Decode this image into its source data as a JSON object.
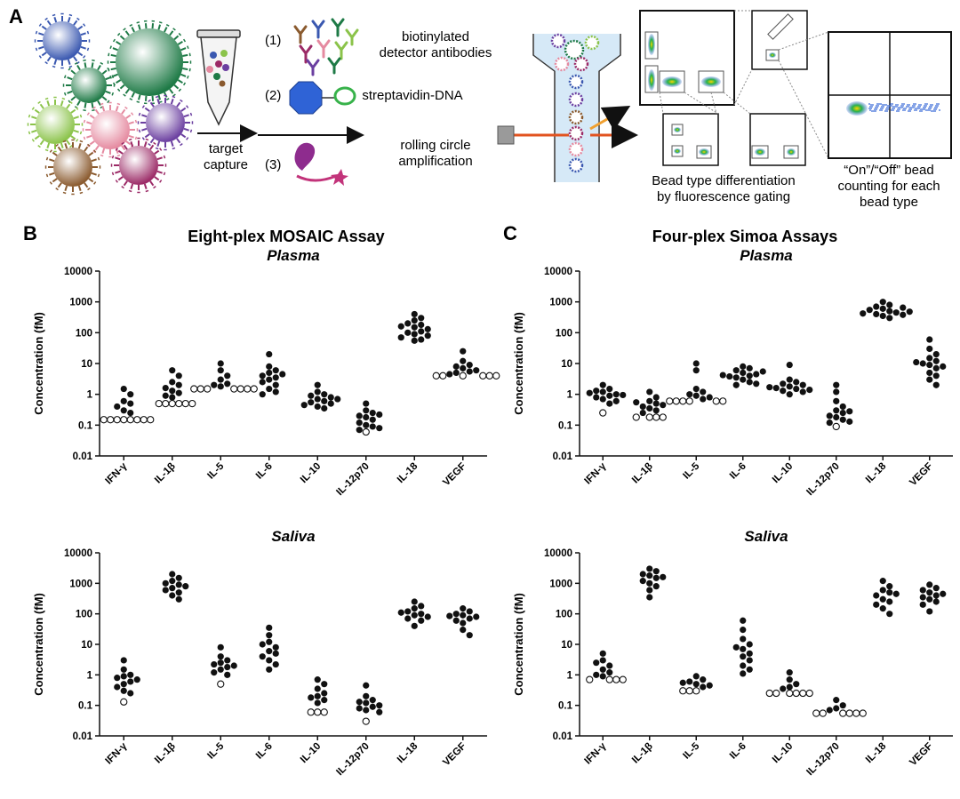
{
  "panels": {
    "A": "A",
    "B": "B",
    "C": "C"
  },
  "schematic": {
    "step1_num": "(1)",
    "step1_label_l1": "biotinylated",
    "step1_label_l2": "detector antibodies",
    "step2_num": "(2)",
    "step2_label": "streptavidin-DNA",
    "step3_num": "(3)",
    "step3_label_l1": "rolling circle",
    "step3_label_l2": "amplification",
    "capture_l1": "target",
    "capture_l2": "capture",
    "gating_l1": "Bead type differentiation",
    "gating_l2": "by fluorescence gating",
    "count_l1": "“On”/“Off” bead",
    "count_l2": "counting for each",
    "count_l3": "bead type"
  },
  "colors": {
    "bead_blue": "#3a58b0",
    "bead_green": "#1e7a46",
    "bead_lightgreen": "#8bc34a",
    "bead_pink": "#e58aa0",
    "bead_purple": "#6b3fa0",
    "bead_brown": "#8a5a2e",
    "bead_magenta": "#9b2a66",
    "laser": "#e2531f",
    "scatter": "#f0a030"
  },
  "chart_data": [
    {
      "type": "scatter",
      "title": "Eight-plex MOSAIC Assay",
      "subtitle": "Plasma",
      "ylabel": "Concentration (fM)",
      "yscale": "log",
      "ylim": [
        0.01,
        10000
      ],
      "yticks": [
        "0.01",
        "0.1",
        "1",
        "10",
        "100",
        "1000",
        "10000"
      ],
      "categories": [
        "IFN-γ",
        "IL-1β",
        "IL-5",
        "IL-6",
        "IL-10",
        "IL-12p70",
        "IL-18",
        "VEGF"
      ],
      "points": [
        {
          "filled": [
            1.5,
            1.0,
            0.6,
            0.5,
            0.4,
            0.3,
            0.25
          ],
          "open": [
            0.15,
            0.15,
            0.15,
            0.15,
            0.15,
            0.15,
            0.15,
            0.15
          ]
        },
        {
          "filled": [
            6,
            4,
            2.5,
            2,
            1.6,
            1.3,
            1.1,
            0.9,
            0.8
          ],
          "open": [
            0.5,
            0.5,
            0.5,
            0.5,
            0.5,
            0.5
          ]
        },
        {
          "filled": [
            10,
            6,
            4,
            3,
            2.2,
            2,
            1.8
          ],
          "open": [
            1.5,
            1.5,
            1.5,
            1.5,
            1.5,
            1.5,
            1.5
          ]
        },
        {
          "filled": [
            20,
            8,
            6,
            5,
            4,
            3.5,
            3,
            2.5,
            2,
            1.5,
            1.2,
            1.0,
            4.5
          ]
        },
        {
          "filled": [
            2,
            1.2,
            1.0,
            0.9,
            0.8,
            0.7,
            0.6,
            0.55,
            0.5,
            0.45,
            0.4,
            0.35,
            0.7
          ]
        },
        {
          "filled": [
            0.5,
            0.3,
            0.25,
            0.2,
            0.18,
            0.15,
            0.12,
            0.1,
            0.09,
            0.08,
            0.07,
            0.22
          ],
          "open": [
            0.06
          ]
        },
        {
          "filled": [
            400,
            300,
            250,
            200,
            180,
            150,
            130,
            110,
            100,
            90,
            80,
            70,
            60,
            55,
            160
          ]
        },
        {
          "filled": [
            25,
            12,
            9,
            8,
            7,
            6,
            5.5,
            5,
            4.5
          ],
          "open": [
            4,
            4,
            4,
            4,
            4,
            4
          ]
        }
      ]
    },
    {
      "type": "scatter",
      "title": "Four-plex Simoa Assays",
      "subtitle": "Plasma",
      "ylabel": "Concentration (fM)",
      "yscale": "log",
      "ylim": [
        0.01,
        10000
      ],
      "yticks": [
        "0.01",
        "0.1",
        "1",
        "10",
        "100",
        "1000",
        "10000"
      ],
      "categories": [
        "IFN-γ",
        "IL-1β",
        "IL-5",
        "IL-6",
        "IL-10",
        "IL-12p70",
        "IL-18",
        "VEGF"
      ],
      "points": [
        {
          "filled": [
            2,
            1.5,
            1.3,
            1.2,
            1.0,
            0.9,
            0.8,
            0.7,
            0.6,
            0.5,
            1.1,
            0.95
          ],
          "open": [
            0.25
          ]
        },
        {
          "filled": [
            1.2,
            0.8,
            0.6,
            0.5,
            0.4,
            0.35,
            0.3,
            0.25,
            0.45,
            0.55
          ],
          "open": [
            0.18,
            0.18,
            0.18,
            0.18
          ]
        },
        {
          "filled": [
            10,
            6,
            1.5,
            1.2,
            1.0,
            0.9,
            0.8,
            0.7
          ],
          "open": [
            0.6,
            0.6,
            0.6,
            0.6,
            0.6,
            0.6
          ]
        },
        {
          "filled": [
            8,
            7,
            6,
            5,
            4.5,
            4,
            3.5,
            3,
            2.5,
            2.2,
            2,
            3.8,
            5.5,
            4.2
          ]
        },
        {
          "filled": [
            9,
            3,
            2.5,
            2.2,
            2,
            1.8,
            1.6,
            1.5,
            1.4,
            1.3,
            1.2,
            1.0,
            1.7
          ]
        },
        {
          "filled": [
            2,
            1.2,
            0.6,
            0.4,
            0.3,
            0.25,
            0.2,
            0.18,
            0.15,
            0.13,
            0.12,
            0.28
          ],
          "open": [
            0.09
          ]
        },
        {
          "filled": [
            1000,
            800,
            700,
            600,
            500,
            450,
            400,
            350,
            300,
            550,
            650,
            420,
            480,
            380
          ]
        },
        {
          "filled": [
            60,
            30,
            20,
            15,
            12,
            10,
            9,
            8,
            7,
            5,
            4,
            3,
            2,
            11
          ]
        }
      ]
    },
    {
      "type": "scatter",
      "subtitle": "Saliva",
      "ylabel": "Concentration (fM)",
      "yscale": "log",
      "ylim": [
        0.01,
        10000
      ],
      "yticks": [
        "0.01",
        "0.1",
        "1",
        "10",
        "100",
        "1000",
        "10000"
      ],
      "categories": [
        "IFN-γ",
        "IL-1β",
        "IL-5",
        "IL-6",
        "IL-10",
        "IL-12p70",
        "IL-18",
        "VEGF"
      ],
      "points": [
        {
          "filled": [
            3,
            1.5,
            1.0,
            0.9,
            0.8,
            0.7,
            0.6,
            0.5,
            0.4,
            0.3,
            0.25
          ],
          "open": [
            0.13
          ]
        },
        {
          "filled": [
            2000,
            1500,
            1200,
            1000,
            900,
            800,
            700,
            600,
            500,
            400,
            300
          ]
        },
        {
          "filled": [
            8,
            4,
            3,
            2.5,
            2.2,
            2,
            1.8,
            1.5,
            1.2,
            1.0
          ],
          "open": [
            0.5
          ]
        },
        {
          "filled": [
            35,
            20,
            12,
            8,
            6,
            5,
            4,
            3,
            2.2,
            1.5,
            10
          ]
        },
        {
          "filled": [
            0.7,
            0.5,
            0.35,
            0.25,
            0.2,
            0.18,
            0.15,
            0.12
          ],
          "open": [
            0.06,
            0.06,
            0.06
          ]
        },
        {
          "filled": [
            0.45,
            0.2,
            0.15,
            0.13,
            0.12,
            0.1,
            0.09,
            0.08,
            0.07,
            0.06
          ],
          "open": [
            0.03
          ]
        },
        {
          "filled": [
            250,
            180,
            150,
            120,
            100,
            90,
            80,
            70,
            60,
            40,
            110
          ]
        },
        {
          "filled": [
            150,
            120,
            100,
            90,
            80,
            70,
            60,
            50,
            30,
            20,
            85
          ]
        }
      ]
    },
    {
      "type": "scatter",
      "subtitle": "Saliva",
      "ylabel": "Concentration (fM)",
      "yscale": "log",
      "ylim": [
        0.01,
        10000
      ],
      "yticks": [
        "0.01",
        "0.1",
        "1",
        "10",
        "100",
        "1000",
        "10000"
      ],
      "categories": [
        "IFN-γ",
        "IL-1β",
        "IL-5",
        "IL-6",
        "IL-10",
        "IL-12p70",
        "IL-18",
        "VEGF"
      ],
      "points": [
        {
          "filled": [
            5,
            3,
            2,
            1.5,
            1.2,
            1.0,
            0.9,
            2.5
          ],
          "open": [
            0.7,
            0.7,
            0.7,
            0.7
          ]
        },
        {
          "filled": [
            3000,
            2500,
            2000,
            1800,
            1500,
            1200,
            1000,
            800,
            600,
            350,
            1600
          ]
        },
        {
          "filled": [
            0.9,
            0.7,
            0.6,
            0.5,
            0.45,
            0.4,
            0.55
          ],
          "open": [
            0.3,
            0.3,
            0.3
          ]
        },
        {
          "filled": [
            60,
            30,
            15,
            10,
            7,
            5,
            4,
            3,
            2,
            1.5,
            1.1,
            8
          ]
        },
        {
          "filled": [
            1.2,
            0.7,
            0.5,
            0.4,
            0.35
          ],
          "open": [
            0.25,
            0.25,
            0.25,
            0.25,
            0.25,
            0.25
          ]
        },
        {
          "filled": [
            0.15,
            0.1,
            0.08,
            0.07
          ],
          "open": [
            0.055,
            0.055,
            0.055,
            0.055,
            0.055,
            0.055
          ]
        },
        {
          "filled": [
            1200,
            800,
            600,
            500,
            400,
            300,
            250,
            200,
            150,
            100,
            450
          ]
        },
        {
          "filled": [
            900,
            700,
            600,
            500,
            400,
            350,
            300,
            250,
            200,
            120,
            450
          ]
        }
      ]
    }
  ]
}
